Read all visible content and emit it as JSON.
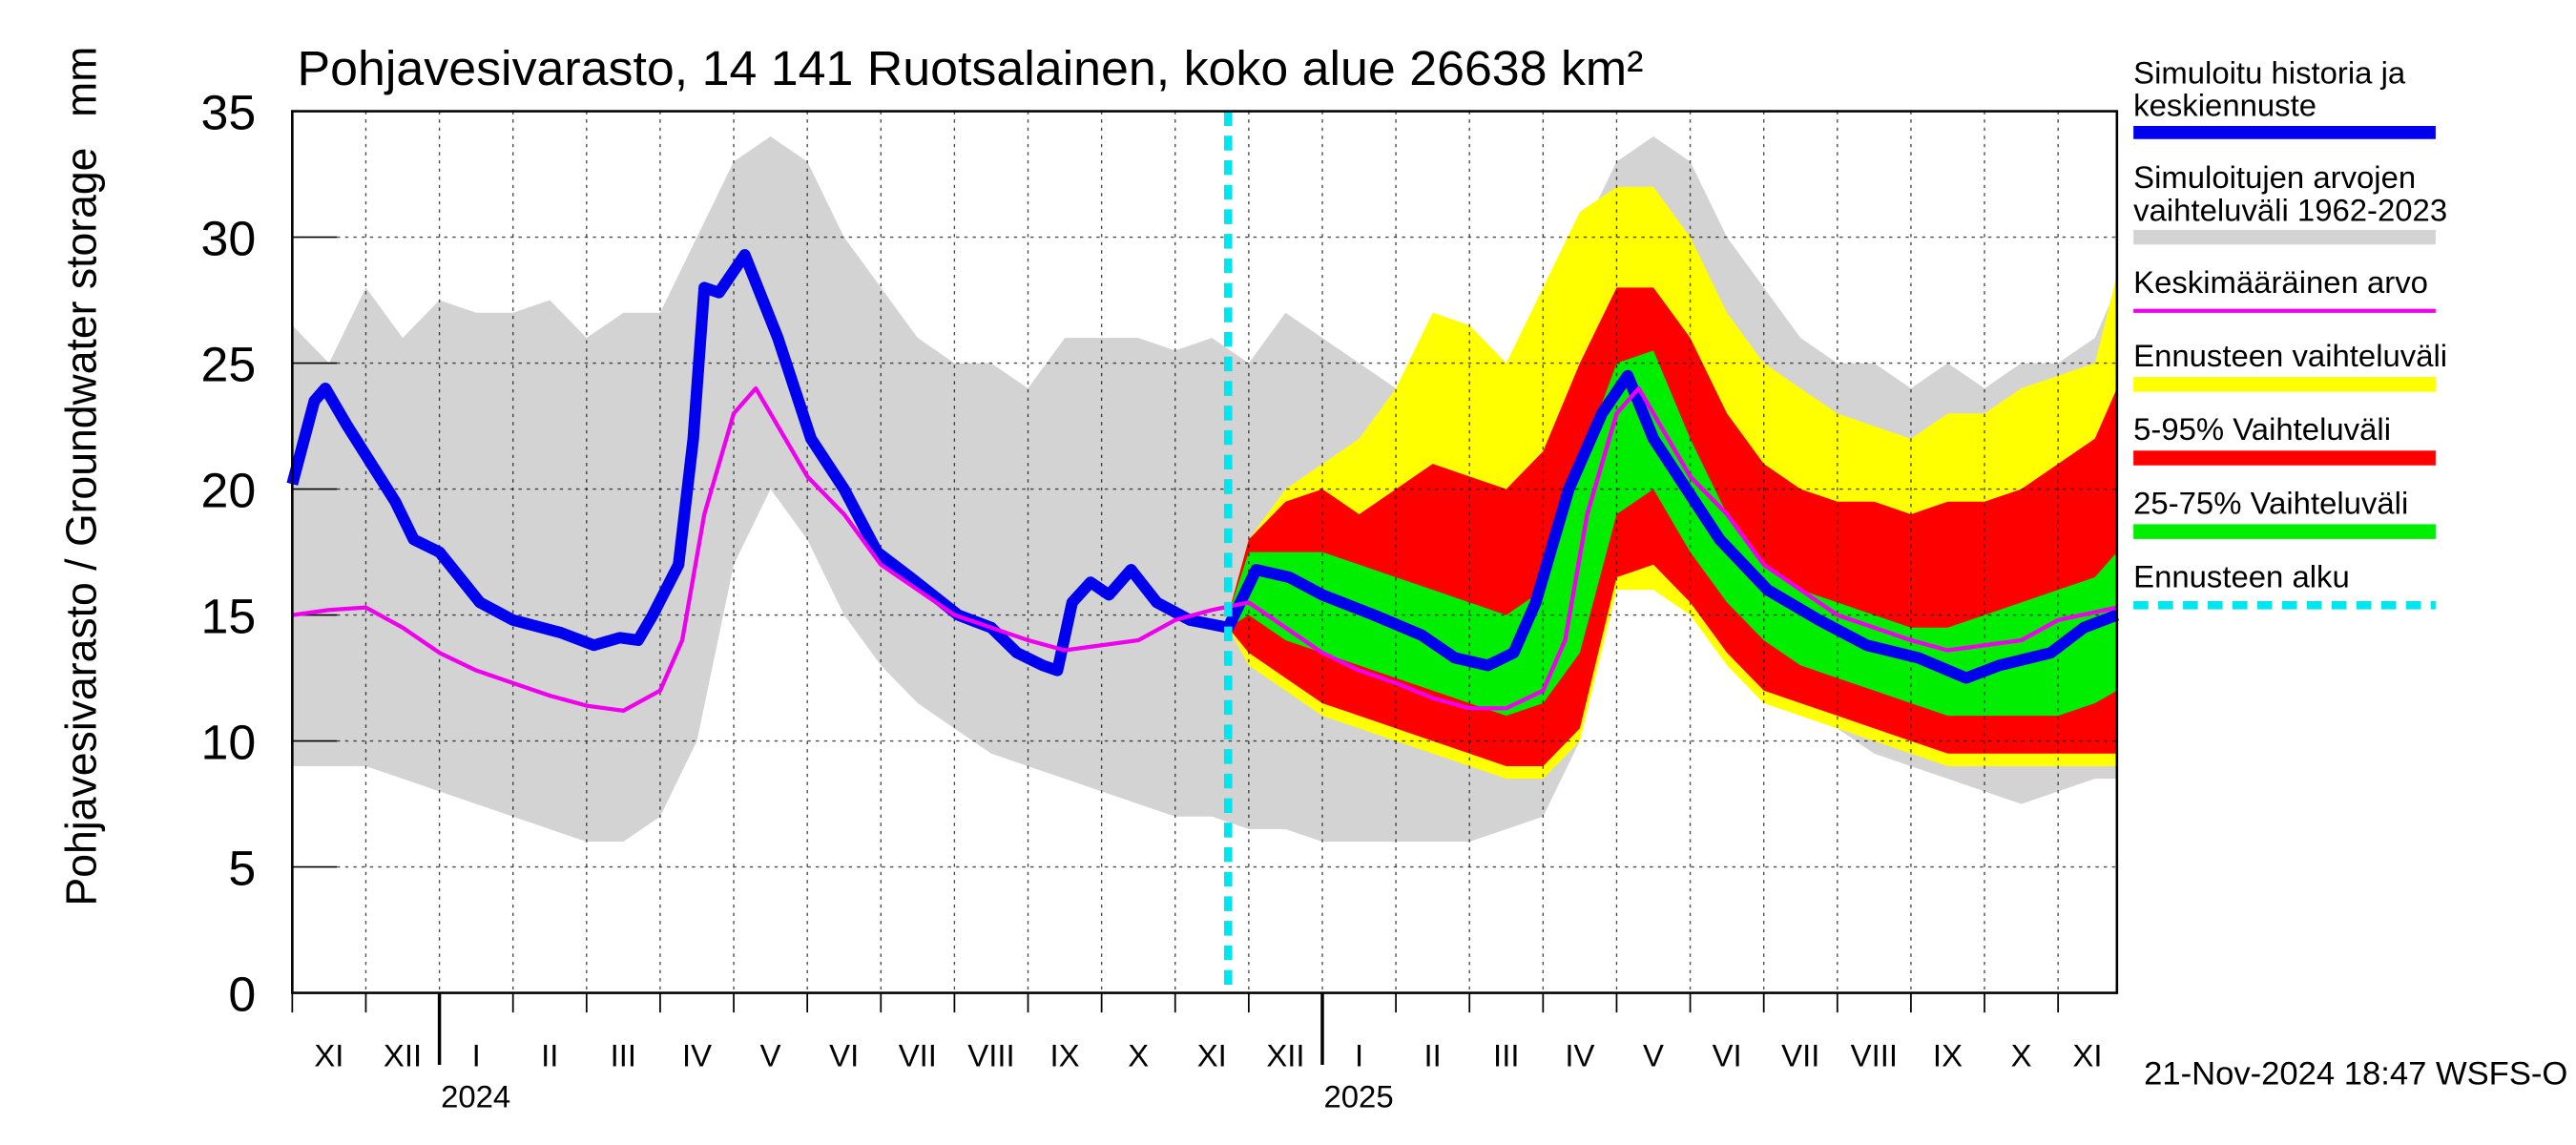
{
  "chart_data": {
    "type": "line",
    "title": "Pohjavesivarasto, 14 141 Ruotsalainen, koko alue 26638 km²",
    "ylabel": "Pohjavesivarasto / Groundwater storage",
    "yunit": "mm",
    "footer": "21-Nov-2024 18:47 WSFS-O",
    "grid": true,
    "legend": "right",
    "xlim": [
      0,
      24.8
    ],
    "ylim": [
      0,
      35
    ],
    "yticks": [
      0,
      5,
      10,
      15,
      20,
      25,
      30,
      35
    ],
    "xticks": [
      {
        "value": 0,
        "label": "XI"
      },
      {
        "value": 1,
        "label": "XII"
      },
      {
        "value": 2,
        "label": "I"
      },
      {
        "value": 3,
        "label": "II"
      },
      {
        "value": 4,
        "label": "III"
      },
      {
        "value": 5,
        "label": "IV"
      },
      {
        "value": 6,
        "label": "V"
      },
      {
        "value": 7,
        "label": "VI"
      },
      {
        "value": 8,
        "label": "VII"
      },
      {
        "value": 9,
        "label": "VIII"
      },
      {
        "value": 10,
        "label": "IX"
      },
      {
        "value": 11,
        "label": "X"
      },
      {
        "value": 12,
        "label": "XI"
      },
      {
        "value": 13,
        "label": "XII"
      },
      {
        "value": 14,
        "label": "I"
      },
      {
        "value": 15,
        "label": "II"
      },
      {
        "value": 16,
        "label": "III"
      },
      {
        "value": 17,
        "label": "IV"
      },
      {
        "value": 18,
        "label": "V"
      },
      {
        "value": 19,
        "label": "VI"
      },
      {
        "value": 20,
        "label": "VII"
      },
      {
        "value": 21,
        "label": "VIII"
      },
      {
        "value": 22,
        "label": "IX"
      },
      {
        "value": 23,
        "label": "X"
      },
      {
        "value": 24,
        "label": "XI"
      }
    ],
    "years": [
      {
        "value": 2,
        "label": "2024"
      },
      {
        "value": 14,
        "label": "2025"
      }
    ],
    "series": [
      {
        "name": "Simuloitu historia ja\nkeskiennuste",
        "kind": "line",
        "color": "#0000ee",
        "x": [
          0,
          0.3,
          0.45,
          0.75,
          1.4,
          1.65,
          2,
          2.55,
          3,
          3.65,
          4.1,
          4.45,
          4.7,
          4.9,
          5.25,
          5.45,
          5.6,
          5.8,
          6.15,
          6.6,
          7.05,
          7.5,
          7.95,
          8.4,
          9.05,
          9.5,
          9.85,
          10.2,
          10.4,
          10.6,
          10.85,
          11.1,
          11.4,
          11.75,
          12.2,
          12.72,
          13.1,
          13.55,
          14,
          14.7,
          15.35,
          15.8,
          16.25,
          16.6,
          16.9,
          17.35,
          17.8,
          18.15,
          18.5,
          18.95,
          19.4,
          20.05,
          20.75,
          21.4,
          22.1,
          22.75,
          23.2,
          23.9,
          24.35,
          24.8
        ],
        "values": [
          20.2,
          23.5,
          24,
          22.5,
          19.5,
          18,
          17.5,
          15.5,
          14.8,
          14.3,
          13.8,
          14.1,
          14,
          15,
          17,
          22,
          28,
          27.8,
          29.3,
          26,
          22,
          20,
          17.5,
          16.5,
          15,
          14.5,
          13.5,
          13,
          12.8,
          15.5,
          16.3,
          15.8,
          16.8,
          15.5,
          14.8,
          14.5,
          16.8,
          16.5,
          15.8,
          15,
          14.2,
          13.3,
          13,
          13.5,
          15.5,
          20,
          23,
          24.5,
          22,
          20,
          18,
          16,
          14.8,
          13.8,
          13.3,
          12.5,
          13,
          13.5,
          14.5,
          15
        ]
      },
      {
        "name": "Simuloitujen arvojen\nvaihteluväli 1962-2023",
        "kind": "band",
        "color": "#d3d3d3",
        "x": [
          0,
          0.5,
          1,
          1.5,
          2,
          2.5,
          3,
          3.5,
          4,
          4.5,
          5,
          5.5,
          6,
          6.5,
          7,
          7.5,
          8,
          8.5,
          9,
          9.5,
          10,
          10.5,
          11,
          11.5,
          12,
          12.5,
          13,
          13.5,
          14,
          14.5,
          15,
          15.5,
          16,
          16.5,
          17,
          17.5,
          18,
          18.5,
          19,
          19.5,
          20,
          20.5,
          21,
          21.5,
          22,
          22.5,
          23,
          23.5,
          24,
          24.5,
          24.8
        ],
        "lower": [
          9,
          9,
          9,
          8.5,
          8,
          7.5,
          7,
          6.5,
          6,
          6,
          7,
          10,
          17,
          20,
          18,
          15,
          13,
          11.5,
          10.5,
          9.5,
          9,
          8.5,
          8,
          7.5,
          7,
          7,
          6.5,
          6.5,
          6,
          6,
          6,
          6,
          6,
          6.5,
          7,
          10,
          17,
          20,
          18,
          15,
          13,
          11.5,
          10.5,
          9.5,
          9,
          8.5,
          8,
          7.5,
          8,
          8.5,
          8.5
        ],
        "upper": [
          26.5,
          25,
          28,
          26,
          27.5,
          27,
          27,
          27.5,
          26,
          27,
          27,
          30,
          33,
          34,
          33,
          30,
          28,
          26,
          25,
          25,
          24,
          26,
          26,
          26,
          25.5,
          26,
          25,
          27,
          26,
          25,
          24,
          23,
          24,
          25,
          26,
          30,
          33,
          34,
          33,
          30,
          28,
          26,
          25,
          25,
          24,
          25,
          24,
          25,
          25,
          26,
          28
        ]
      },
      {
        "name": "Keskimääräinen arvo",
        "kind": "line",
        "color": "#ee00ee",
        "x": [
          0,
          0.5,
          1,
          1.5,
          2,
          2.5,
          3,
          3.5,
          4,
          4.5,
          5,
          5.3,
          5.6,
          6,
          6.3,
          6.6,
          7,
          7.5,
          8,
          8.5,
          9,
          9.5,
          10,
          10.5,
          11,
          11.5,
          12,
          12.5,
          13,
          13.5,
          14,
          14.5,
          15,
          15.5,
          16,
          16.5,
          17,
          17.3,
          17.6,
          18,
          18.3,
          18.6,
          19,
          19.5,
          20,
          20.5,
          21,
          21.5,
          22,
          22.5,
          23,
          23.5,
          24,
          24.8
        ],
        "values": [
          15,
          15.2,
          15.3,
          14.5,
          13.5,
          12.8,
          12.3,
          11.8,
          11.4,
          11.2,
          12,
          14,
          19,
          23,
          24,
          22.5,
          20.5,
          19,
          17,
          16,
          15,
          14.5,
          14,
          13.6,
          13.8,
          14,
          14.8,
          15.2,
          15.5,
          14.5,
          13.5,
          12.8,
          12.3,
          11.7,
          11.3,
          11.3,
          12,
          14,
          19,
          23,
          24,
          22.5,
          20.5,
          19,
          17,
          16,
          15,
          14.5,
          14,
          13.6,
          13.8,
          14,
          14.8,
          15.3
        ]
      },
      {
        "name": "Ennusteen vaihteluväli",
        "kind": "band",
        "color": "#ffff00",
        "x": [
          12.72,
          13,
          13.5,
          14,
          14.5,
          15,
          15.5,
          16,
          16.5,
          17,
          17.5,
          18,
          18.5,
          19,
          19.5,
          20,
          20.5,
          21,
          21.5,
          22,
          22.5,
          23,
          23.5,
          24,
          24.5,
          24.8
        ],
        "lower": [
          14.5,
          13,
          12,
          11,
          10.5,
          10,
          9.5,
          9,
          8.5,
          8.5,
          10,
          16,
          16,
          15,
          13,
          11.5,
          11,
          10.5,
          10,
          9.5,
          9,
          9,
          9,
          9,
          9,
          9
        ],
        "upper": [
          15,
          18,
          20,
          21,
          22,
          24,
          27,
          26.5,
          25,
          28,
          31,
          32,
          32,
          30,
          27,
          25,
          24,
          23,
          22.5,
          22,
          23,
          23,
          24,
          24.5,
          25,
          28.5
        ]
      },
      {
        "name": "5-95% Vaihteluväli",
        "kind": "band",
        "color": "#ff0000",
        "x": [
          12.72,
          13,
          13.5,
          14,
          14.5,
          15,
          15.5,
          16,
          16.5,
          17,
          17.5,
          18,
          18.5,
          19,
          19.5,
          20,
          20.5,
          21,
          21.5,
          22,
          22.5,
          23,
          23.5,
          24,
          24.5,
          24.8
        ],
        "lower": [
          14.5,
          13.5,
          12.5,
          11.5,
          11,
          10.5,
          10,
          9.5,
          9,
          9,
          10.5,
          16.5,
          17,
          15.5,
          13.5,
          12,
          11.5,
          11,
          10.5,
          10,
          9.5,
          9.5,
          9.5,
          9.5,
          9.5,
          9.5
        ],
        "upper": [
          15,
          18,
          19.5,
          20,
          19,
          20,
          21,
          20.5,
          20,
          21.5,
          25,
          28,
          28,
          26,
          23,
          21,
          20,
          19.5,
          19.5,
          19,
          19.5,
          19.5,
          20,
          21,
          22,
          24
        ]
      },
      {
        "name": "25-75% Vaihteluväli",
        "kind": "band",
        "color": "#00ee00",
        "x": [
          12.72,
          13,
          13.5,
          14,
          14.5,
          15,
          15.5,
          16,
          16.5,
          17,
          17.5,
          18,
          18.5,
          19,
          19.5,
          20,
          20.5,
          21,
          21.5,
          22,
          22.5,
          23,
          23.5,
          24,
          24.5,
          24.8
        ],
        "lower": [
          14.5,
          15,
          14,
          13.5,
          13,
          12.5,
          12,
          11.5,
          11,
          11.5,
          13.5,
          19,
          20,
          17.5,
          15.5,
          14,
          13,
          12.5,
          12,
          11.5,
          11,
          11,
          11,
          11,
          11.5,
          12
        ],
        "upper": [
          15,
          17.5,
          17.5,
          17.5,
          17,
          16.5,
          16,
          15.5,
          15,
          16,
          21,
          25,
          25.5,
          22,
          19,
          17,
          16,
          15.5,
          15,
          14.5,
          14.5,
          15,
          15.5,
          16,
          16.5,
          17.5
        ]
      },
      {
        "name": "Ennusteen alku",
        "kind": "vline",
        "color": "#00e5ee",
        "x": 12.72
      }
    ]
  }
}
